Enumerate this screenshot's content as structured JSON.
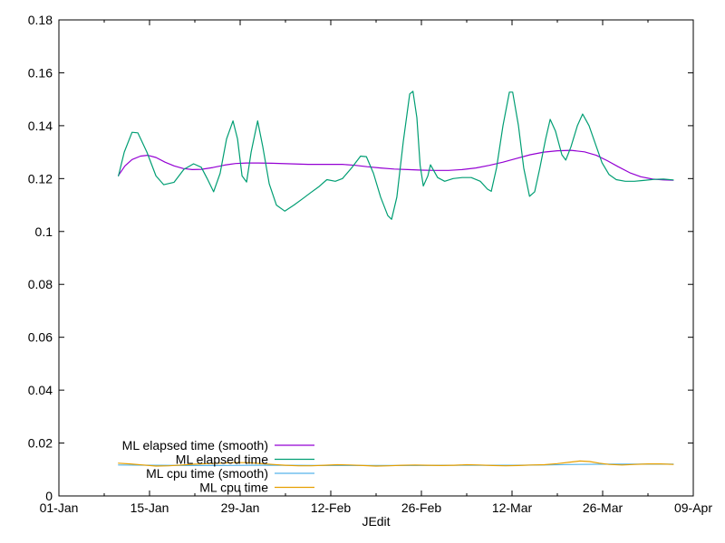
{
  "chart_data": {
    "type": "line",
    "title": "",
    "xlabel": "JEdit",
    "ylabel": "",
    "background": "#ffffff",
    "axis_color": "#000000",
    "text_color": "#000000",
    "grid": false,
    "x_axis": {
      "unit": "date",
      "range_days": [
        0,
        98
      ],
      "major_ticks": [
        {
          "label": "01-Jan",
          "day": 0
        },
        {
          "label": "15-Jan",
          "day": 14
        },
        {
          "label": "29-Jan",
          "day": 28
        },
        {
          "label": "12-Feb",
          "day": 42
        },
        {
          "label": "26-Feb",
          "day": 56
        },
        {
          "label": "12-Mar",
          "day": 70
        },
        {
          "label": "26-Mar",
          "day": 84
        },
        {
          "label": "09-Apr",
          "day": 98
        }
      ],
      "minor_tick_days": [
        7,
        21,
        35,
        49,
        63,
        77,
        91
      ]
    },
    "y_axis": {
      "range": [
        0,
        0.18
      ],
      "ticks": [
        {
          "label": "0",
          "value": 0
        },
        {
          "label": "0.02",
          "value": 0.02
        },
        {
          "label": "0.04",
          "value": 0.04
        },
        {
          "label": "0.06",
          "value": 0.06
        },
        {
          "label": "0.08",
          "value": 0.08
        },
        {
          "label": "0.1",
          "value": 0.1
        },
        {
          "label": "0.12",
          "value": 0.12
        },
        {
          "label": "0.14",
          "value": 0.14
        },
        {
          "label": "0.16",
          "value": 0.16
        },
        {
          "label": "0.18",
          "value": 0.18
        }
      ]
    },
    "legend": {
      "position": "inside-bottom-left",
      "entries": [
        {
          "label": "ML elapsed time (smooth)",
          "color": "#9400d3"
        },
        {
          "label": "ML elapsed time",
          "color": "#009e73"
        },
        {
          "label": "ML cpu time (smooth)",
          "color": "#56b4e9"
        },
        {
          "label": "ML cpu time",
          "color": "#e69f00"
        }
      ]
    },
    "series": [
      {
        "name": "ML elapsed time (smooth)",
        "color": "#9400d3",
        "points": [
          [
            9.2,
            0.1212
          ],
          [
            10.2,
            0.1248
          ],
          [
            11.3,
            0.1272
          ],
          [
            12.6,
            0.1285
          ],
          [
            13.7,
            0.1288
          ],
          [
            15.0,
            0.128
          ],
          [
            16.4,
            0.1262
          ],
          [
            17.8,
            0.1248
          ],
          [
            19.2,
            0.1238
          ],
          [
            20.6,
            0.1234
          ],
          [
            22.0,
            0.1235
          ],
          [
            23.8,
            0.1242
          ],
          [
            25.6,
            0.1251
          ],
          [
            27.3,
            0.1257
          ],
          [
            29.0,
            0.1259
          ],
          [
            30.8,
            0.1259
          ],
          [
            32.9,
            0.1258
          ],
          [
            35.7,
            0.1256
          ],
          [
            38.5,
            0.1254
          ],
          [
            41.3,
            0.1254
          ],
          [
            43.8,
            0.1254
          ],
          [
            45.8,
            0.125
          ],
          [
            47.6,
            0.1245
          ],
          [
            49.7,
            0.124
          ],
          [
            51.8,
            0.1236
          ],
          [
            53.9,
            0.1234
          ],
          [
            56.0,
            0.1232
          ],
          [
            58.1,
            0.1231
          ],
          [
            60.2,
            0.1231
          ],
          [
            62.3,
            0.1234
          ],
          [
            64.4,
            0.124
          ],
          [
            66.5,
            0.125
          ],
          [
            68.6,
            0.1262
          ],
          [
            70.7,
            0.1276
          ],
          [
            72.8,
            0.129
          ],
          [
            74.9,
            0.13
          ],
          [
            77.0,
            0.1305
          ],
          [
            79.1,
            0.1307
          ],
          [
            81.2,
            0.1301
          ],
          [
            83.0,
            0.1288
          ],
          [
            84.7,
            0.1268
          ],
          [
            86.4,
            0.1245
          ],
          [
            88.2,
            0.1222
          ],
          [
            89.9,
            0.1207
          ],
          [
            91.7,
            0.1198
          ],
          [
            93.4,
            0.1195
          ],
          [
            94.9,
            0.1194
          ]
        ]
      },
      {
        "name": "ML elapsed time",
        "color": "#009e73",
        "points": [
          [
            9.2,
            0.121
          ],
          [
            10.1,
            0.13
          ],
          [
            11.3,
            0.1375
          ],
          [
            12.2,
            0.1373
          ],
          [
            13.6,
            0.13
          ],
          [
            15.0,
            0.121
          ],
          [
            16.2,
            0.1177
          ],
          [
            17.8,
            0.1186
          ],
          [
            19.3,
            0.1235
          ],
          [
            20.8,
            0.1256
          ],
          [
            22.0,
            0.1243
          ],
          [
            22.9,
            0.12
          ],
          [
            23.9,
            0.115
          ],
          [
            24.9,
            0.122
          ],
          [
            25.9,
            0.135
          ],
          [
            26.9,
            0.1418
          ],
          [
            27.6,
            0.135
          ],
          [
            28.3,
            0.121
          ],
          [
            29.0,
            0.1187
          ],
          [
            29.7,
            0.13
          ],
          [
            30.7,
            0.1418
          ],
          [
            31.5,
            0.132
          ],
          [
            32.5,
            0.118
          ],
          [
            33.6,
            0.11
          ],
          [
            34.9,
            0.1077
          ],
          [
            36.3,
            0.11
          ],
          [
            37.7,
            0.1125
          ],
          [
            38.9,
            0.1147
          ],
          [
            40.2,
            0.117
          ],
          [
            41.4,
            0.1196
          ],
          [
            42.7,
            0.119
          ],
          [
            43.8,
            0.12
          ],
          [
            45.2,
            0.124
          ],
          [
            46.6,
            0.1285
          ],
          [
            47.5,
            0.1283
          ],
          [
            48.6,
            0.122
          ],
          [
            49.7,
            0.113
          ],
          [
            50.8,
            0.106
          ],
          [
            51.4,
            0.1046
          ],
          [
            52.2,
            0.113
          ],
          [
            53.2,
            0.134
          ],
          [
            54.2,
            0.152
          ],
          [
            54.7,
            0.153
          ],
          [
            55.3,
            0.143
          ],
          [
            55.8,
            0.125
          ],
          [
            56.3,
            0.1172
          ],
          [
            57.0,
            0.121
          ],
          [
            57.4,
            0.1252
          ],
          [
            58.5,
            0.1204
          ],
          [
            59.6,
            0.119
          ],
          [
            60.9,
            0.12
          ],
          [
            62.3,
            0.1204
          ],
          [
            63.7,
            0.1204
          ],
          [
            65.1,
            0.119
          ],
          [
            66.2,
            0.116
          ],
          [
            66.8,
            0.1152
          ],
          [
            67.6,
            0.124
          ],
          [
            68.6,
            0.14
          ],
          [
            69.6,
            0.1527
          ],
          [
            70.1,
            0.1527
          ],
          [
            71.0,
            0.14
          ],
          [
            71.8,
            0.124
          ],
          [
            72.7,
            0.1133
          ],
          [
            73.5,
            0.115
          ],
          [
            74.3,
            0.124
          ],
          [
            75.2,
            0.135
          ],
          [
            75.9,
            0.1424
          ],
          [
            76.7,
            0.138
          ],
          [
            77.7,
            0.129
          ],
          [
            78.3,
            0.127
          ],
          [
            79.1,
            0.132
          ],
          [
            80.1,
            0.14
          ],
          [
            80.9,
            0.1444
          ],
          [
            81.9,
            0.14
          ],
          [
            82.9,
            0.133
          ],
          [
            83.9,
            0.126
          ],
          [
            85.0,
            0.1215
          ],
          [
            86.1,
            0.1196
          ],
          [
            87.5,
            0.119
          ],
          [
            88.9,
            0.119
          ],
          [
            90.3,
            0.1193
          ],
          [
            92.0,
            0.1197
          ],
          [
            93.4,
            0.1198
          ],
          [
            94.9,
            0.1195
          ]
        ]
      },
      {
        "name": "ML cpu time (smooth)",
        "color": "#56b4e9",
        "points": [
          [
            9.2,
            0.0117
          ],
          [
            15,
            0.0116
          ],
          [
            20,
            0.0115
          ],
          [
            25,
            0.0115
          ],
          [
            30,
            0.0116
          ],
          [
            35,
            0.0116
          ],
          [
            40,
            0.0115
          ],
          [
            45,
            0.0115
          ],
          [
            50,
            0.0115
          ],
          [
            55,
            0.0115
          ],
          [
            60,
            0.0116
          ],
          [
            65,
            0.0116
          ],
          [
            70,
            0.0116
          ],
          [
            75,
            0.0117
          ],
          [
            80,
            0.0119
          ],
          [
            85,
            0.012
          ],
          [
            90,
            0.012
          ],
          [
            94.9,
            0.012
          ]
        ]
      },
      {
        "name": "ML cpu time",
        "color": "#e69f00",
        "points": [
          [
            9.2,
            0.0124
          ],
          [
            11,
            0.0121
          ],
          [
            13,
            0.0117
          ],
          [
            15,
            0.0113
          ],
          [
            17,
            0.0114
          ],
          [
            19,
            0.0117
          ],
          [
            21,
            0.012
          ],
          [
            23,
            0.0122
          ],
          [
            25,
            0.0124
          ],
          [
            27,
            0.0126
          ],
          [
            29,
            0.0126
          ],
          [
            31,
            0.0123
          ],
          [
            33,
            0.0119
          ],
          [
            35,
            0.0116
          ],
          [
            37,
            0.0114
          ],
          [
            39,
            0.0114
          ],
          [
            41,
            0.0116
          ],
          [
            43,
            0.0118
          ],
          [
            45,
            0.0117
          ],
          [
            47,
            0.0115
          ],
          [
            49,
            0.0113
          ],
          [
            51,
            0.0114
          ],
          [
            53,
            0.0116
          ],
          [
            55,
            0.0117
          ],
          [
            57,
            0.0116
          ],
          [
            59,
            0.0115
          ],
          [
            61,
            0.0116
          ],
          [
            63,
            0.0118
          ],
          [
            65,
            0.0117
          ],
          [
            67,
            0.0115
          ],
          [
            69,
            0.0114
          ],
          [
            71,
            0.0115
          ],
          [
            73,
            0.0117
          ],
          [
            75,
            0.0118
          ],
          [
            77,
            0.0122
          ],
          [
            79,
            0.0128
          ],
          [
            80.5,
            0.0132
          ],
          [
            82,
            0.013
          ],
          [
            83.5,
            0.0124
          ],
          [
            85,
            0.0119
          ],
          [
            87,
            0.0117
          ],
          [
            89,
            0.0119
          ],
          [
            91,
            0.0121
          ],
          [
            93,
            0.0121
          ],
          [
            94.9,
            0.0119
          ]
        ]
      }
    ]
  }
}
